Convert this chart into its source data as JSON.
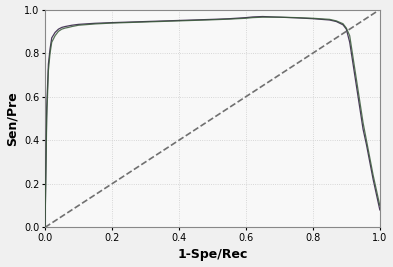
{
  "title": "",
  "xlabel": "1-Spe/Rec",
  "ylabel": "Sen/Pre",
  "xlim": [
    0.0,
    1.0
  ],
  "ylim": [
    0.0,
    1.0
  ],
  "xticks": [
    0.0,
    0.2,
    0.4,
    0.6,
    0.8,
    1.0
  ],
  "yticks": [
    0.0,
    0.2,
    0.4,
    0.6,
    0.8,
    1.0
  ],
  "background_color": "#f0f0f0",
  "plot_bg_color": "#f8f8f8",
  "curve1_color": "#4a3a5a",
  "curve2_color": "#3a5a3a",
  "curve_linewidth": 0.9,
  "diag_color": "#707070",
  "diag_linewidth": 1.2,
  "diag_linestyle": "--",
  "figsize": [
    3.93,
    2.67
  ],
  "dpi": 100,
  "curve1_x": [
    0.0,
    0.005,
    0.01,
    0.015,
    0.02,
    0.03,
    0.04,
    0.05,
    0.06,
    0.07,
    0.08,
    0.1,
    0.15,
    0.2,
    0.3,
    0.4,
    0.5,
    0.55,
    0.6,
    0.62,
    0.65,
    0.7,
    0.75,
    0.8,
    0.85,
    0.87,
    0.89,
    0.9,
    0.91,
    0.92,
    0.93,
    0.94,
    0.95,
    0.96,
    0.97,
    0.98,
    0.99,
    1.0
  ],
  "curve1_y": [
    0.0,
    0.55,
    0.75,
    0.82,
    0.87,
    0.895,
    0.91,
    0.918,
    0.922,
    0.925,
    0.928,
    0.932,
    0.937,
    0.94,
    0.945,
    0.95,
    0.955,
    0.958,
    0.963,
    0.966,
    0.968,
    0.965,
    0.962,
    0.958,
    0.952,
    0.945,
    0.93,
    0.91,
    0.85,
    0.75,
    0.65,
    0.55,
    0.45,
    0.38,
    0.3,
    0.22,
    0.15,
    0.08
  ],
  "curve2_x": [
    0.0,
    0.005,
    0.01,
    0.015,
    0.02,
    0.03,
    0.04,
    0.05,
    0.06,
    0.07,
    0.08,
    0.1,
    0.15,
    0.2,
    0.3,
    0.4,
    0.5,
    0.55,
    0.6,
    0.62,
    0.65,
    0.7,
    0.75,
    0.8,
    0.85,
    0.87,
    0.89,
    0.9,
    0.91,
    0.92,
    0.93,
    0.94,
    0.95,
    0.96,
    0.97,
    0.98,
    0.99,
    1.0
  ],
  "curve2_y": [
    0.0,
    0.5,
    0.72,
    0.8,
    0.85,
    0.88,
    0.9,
    0.91,
    0.915,
    0.918,
    0.922,
    0.928,
    0.934,
    0.938,
    0.943,
    0.948,
    0.953,
    0.956,
    0.96,
    0.963,
    0.965,
    0.965,
    0.963,
    0.96,
    0.955,
    0.948,
    0.935,
    0.915,
    0.88,
    0.78,
    0.68,
    0.58,
    0.48,
    0.4,
    0.32,
    0.24,
    0.17,
    0.1
  ],
  "grid_color": "#cccccc",
  "tick_fontsize": 7,
  "label_fontsize": 9,
  "spine_color": "#888888"
}
